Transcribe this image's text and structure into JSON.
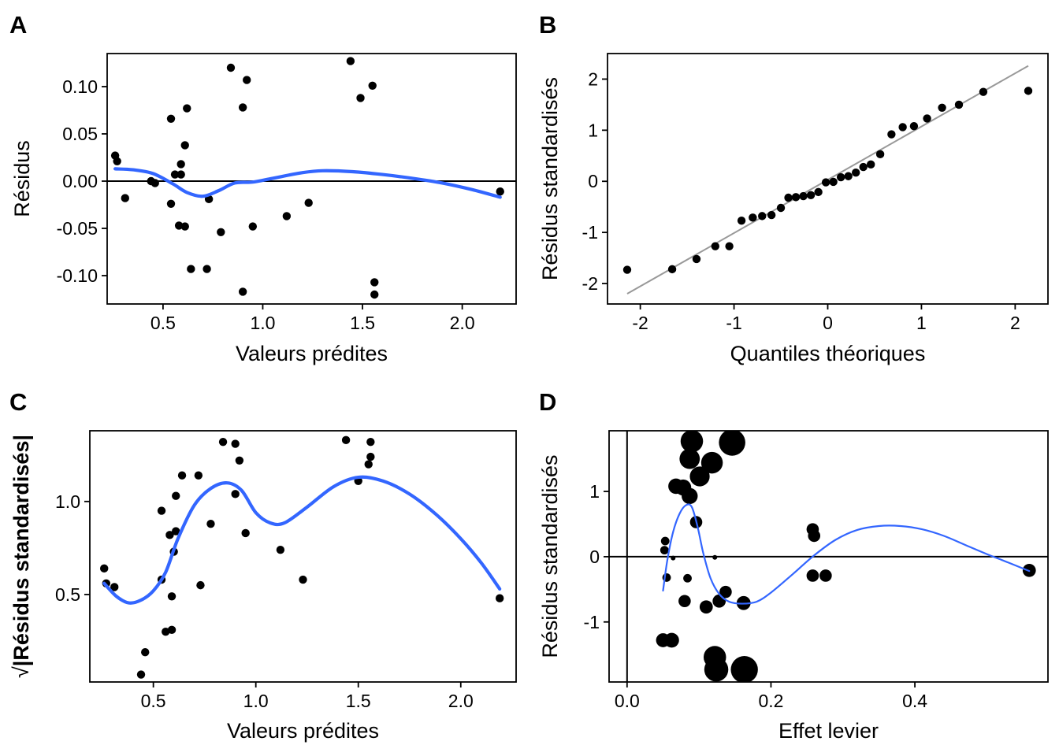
{
  "colors": {
    "point": "#000000",
    "smooth": "#3366FF",
    "qqline": "#999999",
    "refline": "#000000"
  },
  "chart_data": [
    {
      "tag": "A",
      "type": "scatter",
      "xlabel": "Valeurs prédites",
      "ylabel": "Résidus",
      "xlim": [
        0.22,
        2.27
      ],
      "ylim": [
        -0.13,
        0.135
      ],
      "xticks": [
        0.5,
        1.0,
        1.5,
        2.0
      ],
      "xtick_labels": [
        "0.5",
        "1.0",
        "1.5",
        "2.0"
      ],
      "yticks": [
        -0.1,
        -0.05,
        0.0,
        0.05,
        0.1
      ],
      "ytick_labels": [
        "-0.10",
        "-0.05",
        "0.00",
        "0.05",
        "0.10"
      ],
      "hline": 0,
      "points": [
        {
          "x": 0.26,
          "y": 0.027
        },
        {
          "x": 0.27,
          "y": 0.021
        },
        {
          "x": 0.31,
          "y": -0.018
        },
        {
          "x": 0.44,
          "y": 0.0
        },
        {
          "x": 0.46,
          "y": -0.002
        },
        {
          "x": 0.54,
          "y": 0.066
        },
        {
          "x": 0.54,
          "y": -0.024
        },
        {
          "x": 0.56,
          "y": 0.007
        },
        {
          "x": 0.58,
          "y": -0.047
        },
        {
          "x": 0.59,
          "y": 0.018
        },
        {
          "x": 0.59,
          "y": 0.007
        },
        {
          "x": 0.61,
          "y": 0.038
        },
        {
          "x": 0.62,
          "y": 0.077
        },
        {
          "x": 0.61,
          "y": -0.048
        },
        {
          "x": 0.64,
          "y": -0.093
        },
        {
          "x": 0.72,
          "y": -0.093
        },
        {
          "x": 0.73,
          "y": -0.019
        },
        {
          "x": 0.79,
          "y": -0.054
        },
        {
          "x": 0.84,
          "y": 0.12
        },
        {
          "x": 0.9,
          "y": 0.078
        },
        {
          "x": 0.9,
          "y": -0.117
        },
        {
          "x": 0.92,
          "y": 0.107
        },
        {
          "x": 0.95,
          "y": -0.048
        },
        {
          "x": 1.12,
          "y": -0.037
        },
        {
          "x": 1.23,
          "y": -0.023
        },
        {
          "x": 1.44,
          "y": 0.127
        },
        {
          "x": 1.49,
          "y": 0.088
        },
        {
          "x": 1.55,
          "y": 0.101
        },
        {
          "x": 1.56,
          "y": -0.107
        },
        {
          "x": 1.56,
          "y": -0.12
        },
        {
          "x": 2.19,
          "y": -0.011
        }
      ],
      "smooth": [
        {
          "x": 0.26,
          "y": 0.013
        },
        {
          "x": 0.35,
          "y": 0.012
        },
        {
          "x": 0.45,
          "y": 0.008
        },
        {
          "x": 0.55,
          "y": -0.003
        },
        {
          "x": 0.62,
          "y": -0.012
        },
        {
          "x": 0.7,
          "y": -0.016
        },
        {
          "x": 0.78,
          "y": -0.01
        },
        {
          "x": 0.86,
          "y": -0.002
        },
        {
          "x": 0.95,
          "y": -0.001
        },
        {
          "x": 1.05,
          "y": 0.003
        },
        {
          "x": 1.2,
          "y": 0.009
        },
        {
          "x": 1.3,
          "y": 0.011
        },
        {
          "x": 1.45,
          "y": 0.01
        },
        {
          "x": 1.6,
          "y": 0.007
        },
        {
          "x": 1.75,
          "y": 0.003
        },
        {
          "x": 1.9,
          "y": -0.002
        },
        {
          "x": 2.05,
          "y": -0.009
        },
        {
          "x": 2.19,
          "y": -0.017
        }
      ]
    },
    {
      "tag": "B",
      "type": "scatter",
      "xlabel": "Quantiles théoriques",
      "ylabel": "Résidus standardisés",
      "xlim": [
        -2.35,
        2.35
      ],
      "ylim": [
        -2.4,
        2.5
      ],
      "xticks": [
        -2,
        -1,
        0,
        1,
        2
      ],
      "xtick_labels": [
        "-2",
        "-1",
        "0",
        "1",
        "2"
      ],
      "yticks": [
        -2,
        -1,
        0,
        1,
        2
      ],
      "ytick_labels": [
        "-2",
        "-1",
        "0",
        "1",
        "2"
      ],
      "qqline": [
        {
          "x": -2.14,
          "y": -2.2
        },
        {
          "x": 2.14,
          "y": 2.26
        }
      ],
      "points": [
        {
          "x": -2.14,
          "y": -1.73
        },
        {
          "x": -1.66,
          "y": -1.72
        },
        {
          "x": -1.4,
          "y": -1.52
        },
        {
          "x": -1.2,
          "y": -1.27
        },
        {
          "x": -1.05,
          "y": -1.27
        },
        {
          "x": -0.92,
          "y": -0.77
        },
        {
          "x": -0.8,
          "y": -0.71
        },
        {
          "x": -0.7,
          "y": -0.68
        },
        {
          "x": -0.6,
          "y": -0.66
        },
        {
          "x": -0.5,
          "y": -0.52
        },
        {
          "x": -0.42,
          "y": -0.32
        },
        {
          "x": -0.34,
          "y": -0.31
        },
        {
          "x": -0.26,
          "y": -0.29
        },
        {
          "x": -0.18,
          "y": -0.27
        },
        {
          "x": -0.1,
          "y": -0.21
        },
        {
          "x": -0.02,
          "y": -0.02
        },
        {
          "x": 0.06,
          "y": -0.01
        },
        {
          "x": 0.14,
          "y": 0.08
        },
        {
          "x": 0.22,
          "y": 0.1
        },
        {
          "x": 0.3,
          "y": 0.17
        },
        {
          "x": 0.38,
          "y": 0.28
        },
        {
          "x": 0.46,
          "y": 0.33
        },
        {
          "x": 0.56,
          "y": 0.53
        },
        {
          "x": 0.68,
          "y": 0.92
        },
        {
          "x": 0.8,
          "y": 1.06
        },
        {
          "x": 0.92,
          "y": 1.08
        },
        {
          "x": 1.06,
          "y": 1.23
        },
        {
          "x": 1.22,
          "y": 1.44
        },
        {
          "x": 1.4,
          "y": 1.5
        },
        {
          "x": 1.66,
          "y": 1.75
        },
        {
          "x": 2.14,
          "y": 1.77
        }
      ]
    },
    {
      "tag": "C",
      "type": "scatter",
      "xlabel": "Valeurs prédites",
      "ylabel": "√|Résidus standardisés|",
      "ylabel_sqrt": "√",
      "ylabel_inner": "Résidus standardisés",
      "xlim": [
        0.19,
        2.27
      ],
      "ylim": [
        0.03,
        1.38
      ],
      "xticks": [
        0.5,
        1.0,
        1.5,
        2.0
      ],
      "xtick_labels": [
        "0.5",
        "1.0",
        "1.5",
        "2.0"
      ],
      "yticks": [
        0.5,
        1.0
      ],
      "ytick_labels": [
        "0.5",
        "1.0"
      ],
      "points": [
        {
          "x": 0.26,
          "y": 0.64
        },
        {
          "x": 0.27,
          "y": 0.56
        },
        {
          "x": 0.31,
          "y": 0.54
        },
        {
          "x": 0.44,
          "y": 0.07
        },
        {
          "x": 0.46,
          "y": 0.19
        },
        {
          "x": 0.54,
          "y": 0.95
        },
        {
          "x": 0.54,
          "y": 0.58
        },
        {
          "x": 0.56,
          "y": 0.3
        },
        {
          "x": 0.58,
          "y": 0.82
        },
        {
          "x": 0.59,
          "y": 0.49
        },
        {
          "x": 0.59,
          "y": 0.31
        },
        {
          "x": 0.6,
          "y": 0.73
        },
        {
          "x": 0.61,
          "y": 0.84
        },
        {
          "x": 0.61,
          "y": 1.03
        },
        {
          "x": 0.64,
          "y": 1.14
        },
        {
          "x": 0.72,
          "y": 1.14
        },
        {
          "x": 0.73,
          "y": 0.55
        },
        {
          "x": 0.78,
          "y": 0.88
        },
        {
          "x": 0.84,
          "y": 1.32
        },
        {
          "x": 0.9,
          "y": 1.31
        },
        {
          "x": 0.9,
          "y": 1.04
        },
        {
          "x": 0.92,
          "y": 1.22
        },
        {
          "x": 0.95,
          "y": 0.83
        },
        {
          "x": 1.12,
          "y": 0.74
        },
        {
          "x": 1.23,
          "y": 0.58
        },
        {
          "x": 1.44,
          "y": 1.33
        },
        {
          "x": 1.5,
          "y": 1.11
        },
        {
          "x": 1.55,
          "y": 1.2
        },
        {
          "x": 1.56,
          "y": 1.24
        },
        {
          "x": 1.56,
          "y": 1.32
        },
        {
          "x": 2.19,
          "y": 0.48
        }
      ],
      "smooth": [
        {
          "x": 0.26,
          "y": 0.56
        },
        {
          "x": 0.32,
          "y": 0.49
        },
        {
          "x": 0.38,
          "y": 0.455
        },
        {
          "x": 0.44,
          "y": 0.47
        },
        {
          "x": 0.5,
          "y": 0.52
        },
        {
          "x": 0.56,
          "y": 0.62
        },
        {
          "x": 0.62,
          "y": 0.8
        },
        {
          "x": 0.7,
          "y": 0.98
        },
        {
          "x": 0.78,
          "y": 1.07
        },
        {
          "x": 0.86,
          "y": 1.1
        },
        {
          "x": 0.93,
          "y": 1.06
        },
        {
          "x": 1.0,
          "y": 0.94
        },
        {
          "x": 1.07,
          "y": 0.885
        },
        {
          "x": 1.14,
          "y": 0.885
        },
        {
          "x": 1.25,
          "y": 0.97
        },
        {
          "x": 1.38,
          "y": 1.08
        },
        {
          "x": 1.5,
          "y": 1.13
        },
        {
          "x": 1.62,
          "y": 1.11
        },
        {
          "x": 1.75,
          "y": 1.04
        },
        {
          "x": 1.88,
          "y": 0.93
        },
        {
          "x": 2.0,
          "y": 0.8
        },
        {
          "x": 2.1,
          "y": 0.67
        },
        {
          "x": 2.19,
          "y": 0.53
        }
      ]
    },
    {
      "tag": "D",
      "type": "scatter",
      "xlabel": "Effet levier",
      "ylabel": "Résidus standardisés",
      "xlim": [
        -0.025,
        0.585
      ],
      "ylim": [
        -1.92,
        1.93
      ],
      "xticks": [
        0.0,
        0.2,
        0.4
      ],
      "xtick_labels": [
        "0.0",
        "0.2",
        "0.4"
      ],
      "yticks": [
        -1,
        0,
        1
      ],
      "ytick_labels": [
        "-1",
        "0",
        "1"
      ],
      "hline": 0,
      "vline": 0,
      "points": [
        {
          "x": 0.09,
          "y": 1.77,
          "cook": 0.22
        },
        {
          "x": 0.146,
          "y": 1.75,
          "cook": 0.33
        },
        {
          "x": 0.087,
          "y": 1.5,
          "cook": 0.17
        },
        {
          "x": 0.118,
          "y": 1.44,
          "cook": 0.2
        },
        {
          "x": 0.101,
          "y": 1.23,
          "cook": 0.16
        },
        {
          "x": 0.068,
          "y": 1.08,
          "cook": 0.08
        },
        {
          "x": 0.078,
          "y": 1.06,
          "cook": 0.09
        },
        {
          "x": 0.087,
          "y": 0.93,
          "cook": 0.09
        },
        {
          "x": 0.096,
          "y": 0.53,
          "cook": 0.04
        },
        {
          "x": 0.053,
          "y": 0.24,
          "cook": 0.01
        },
        {
          "x": 0.052,
          "y": 0.1,
          "cook": 0.01
        },
        {
          "x": 0.064,
          "y": -0.02,
          "cook": 0.0
        },
        {
          "x": 0.122,
          "y": -0.01,
          "cook": 0.0
        },
        {
          "x": 0.055,
          "y": -0.32,
          "cook": 0.01
        },
        {
          "x": 0.084,
          "y": -0.33,
          "cook": 0.01
        },
        {
          "x": 0.08,
          "y": -0.68,
          "cook": 0.04
        },
        {
          "x": 0.11,
          "y": -0.77,
          "cook": 0.05
        },
        {
          "x": 0.128,
          "y": -0.68,
          "cook": 0.05
        },
        {
          "x": 0.137,
          "y": -0.54,
          "cook": 0.04
        },
        {
          "x": 0.162,
          "y": -0.71,
          "cook": 0.06
        },
        {
          "x": 0.122,
          "y": -1.54,
          "cook": 0.22
        },
        {
          "x": 0.124,
          "y": -1.73,
          "cook": 0.26
        },
        {
          "x": 0.163,
          "y": -1.73,
          "cook": 0.35
        },
        {
          "x": 0.05,
          "y": -1.28,
          "cook": 0.06
        },
        {
          "x": 0.062,
          "y": -1.28,
          "cook": 0.07
        },
        {
          "x": 0.258,
          "y": 0.42,
          "cook": 0.04
        },
        {
          "x": 0.26,
          "y": 0.32,
          "cook": 0.04
        },
        {
          "x": 0.258,
          "y": -0.29,
          "cook": 0.04
        },
        {
          "x": 0.276,
          "y": -0.29,
          "cook": 0.04
        },
        {
          "x": 0.559,
          "y": -0.21,
          "cook": 0.05
        }
      ],
      "smooth": [
        {
          "x": 0.05,
          "y": -0.52
        },
        {
          "x": 0.056,
          "y": -0.05
        },
        {
          "x": 0.064,
          "y": 0.38
        },
        {
          "x": 0.073,
          "y": 0.66
        },
        {
          "x": 0.082,
          "y": 0.79
        },
        {
          "x": 0.09,
          "y": 0.76
        },
        {
          "x": 0.098,
          "y": 0.46
        },
        {
          "x": 0.106,
          "y": 0.05
        },
        {
          "x": 0.116,
          "y": -0.33
        },
        {
          "x": 0.128,
          "y": -0.57
        },
        {
          "x": 0.142,
          "y": -0.69
        },
        {
          "x": 0.16,
          "y": -0.72
        },
        {
          "x": 0.18,
          "y": -0.69
        },
        {
          "x": 0.2,
          "y": -0.55
        },
        {
          "x": 0.23,
          "y": -0.27
        },
        {
          "x": 0.26,
          "y": 0.02
        },
        {
          "x": 0.29,
          "y": 0.26
        },
        {
          "x": 0.32,
          "y": 0.41
        },
        {
          "x": 0.35,
          "y": 0.47
        },
        {
          "x": 0.38,
          "y": 0.47
        },
        {
          "x": 0.41,
          "y": 0.42
        },
        {
          "x": 0.44,
          "y": 0.32
        },
        {
          "x": 0.47,
          "y": 0.18
        },
        {
          "x": 0.5,
          "y": 0.04
        },
        {
          "x": 0.53,
          "y": -0.09
        },
        {
          "x": 0.559,
          "y": -0.22
        }
      ]
    }
  ]
}
